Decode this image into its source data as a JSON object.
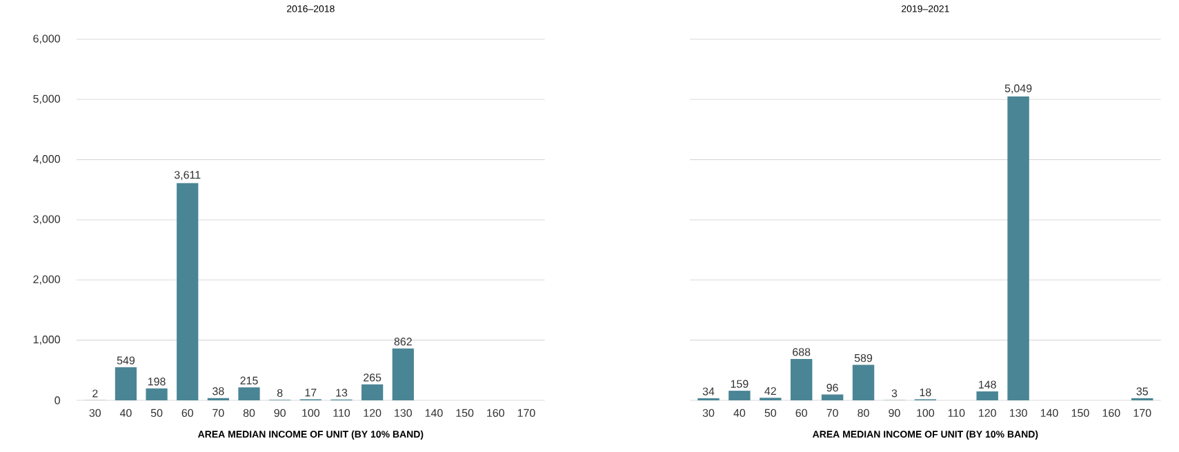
{
  "chart_data": [
    {
      "type": "bar",
      "title": "2016–2018",
      "xlabel": "AREA MEDIAN INCOME OF UNIT (BY 10% BAND)",
      "categories": [
        "30",
        "40",
        "50",
        "60",
        "70",
        "80",
        "90",
        "100",
        "110",
        "120",
        "130",
        "140",
        "150",
        "160",
        "170"
      ],
      "values": [
        2,
        549,
        198,
        3611,
        38,
        215,
        8,
        17,
        13,
        265,
        862,
        null,
        null,
        null,
        null
      ],
      "value_labels": [
        "2",
        "549",
        "198",
        "3,611",
        "38",
        "215",
        "8",
        "17",
        "13",
        "265",
        "862",
        null,
        null,
        null,
        null
      ],
      "color": "#4a8596",
      "ylim": [
        0,
        6000
      ],
      "yticks": [
        0,
        {
          "value": 1000,
          "label": "1,000"
        },
        {
          "value": 2000,
          "label": "2,000"
        },
        {
          "value": 3000,
          "label": "3,000"
        },
        {
          "value": 4000,
          "label": "4,000"
        },
        {
          "value": 5000,
          "label": "5,000"
        },
        {
          "value": 6000,
          "label": "6,000"
        }
      ],
      "grid": "y"
    },
    {
      "type": "bar",
      "title": "2019–2021",
      "xlabel": "AREA MEDIAN INCOME OF UNIT (BY 10% BAND)",
      "categories": [
        "30",
        "40",
        "50",
        "60",
        "70",
        "80",
        "90",
        "100",
        "110",
        "120",
        "130",
        "140",
        "150",
        "160",
        "170"
      ],
      "values": [
        34,
        159,
        42,
        688,
        96,
        589,
        3,
        18,
        null,
        148,
        5049,
        null,
        null,
        null,
        35
      ],
      "value_labels": [
        "34",
        "159",
        "42",
        "688",
        "96",
        "589",
        "3",
        "18",
        null,
        "148",
        "5,049",
        null,
        null,
        null,
        "35"
      ],
      "color": "#4a8596",
      "ylim": [
        0,
        6000
      ],
      "yticks": [
        {
          "value": 0,
          "label": null
        },
        {
          "value": 1000,
          "label": null
        },
        {
          "value": 2000,
          "label": null
        },
        {
          "value": 3000,
          "label": null
        },
        {
          "value": 4000,
          "label": null
        },
        {
          "value": 5000,
          "label": null
        },
        {
          "value": 6000,
          "label": null
        }
      ],
      "grid": "y",
      "tick_labels": "x"
    }
  ]
}
